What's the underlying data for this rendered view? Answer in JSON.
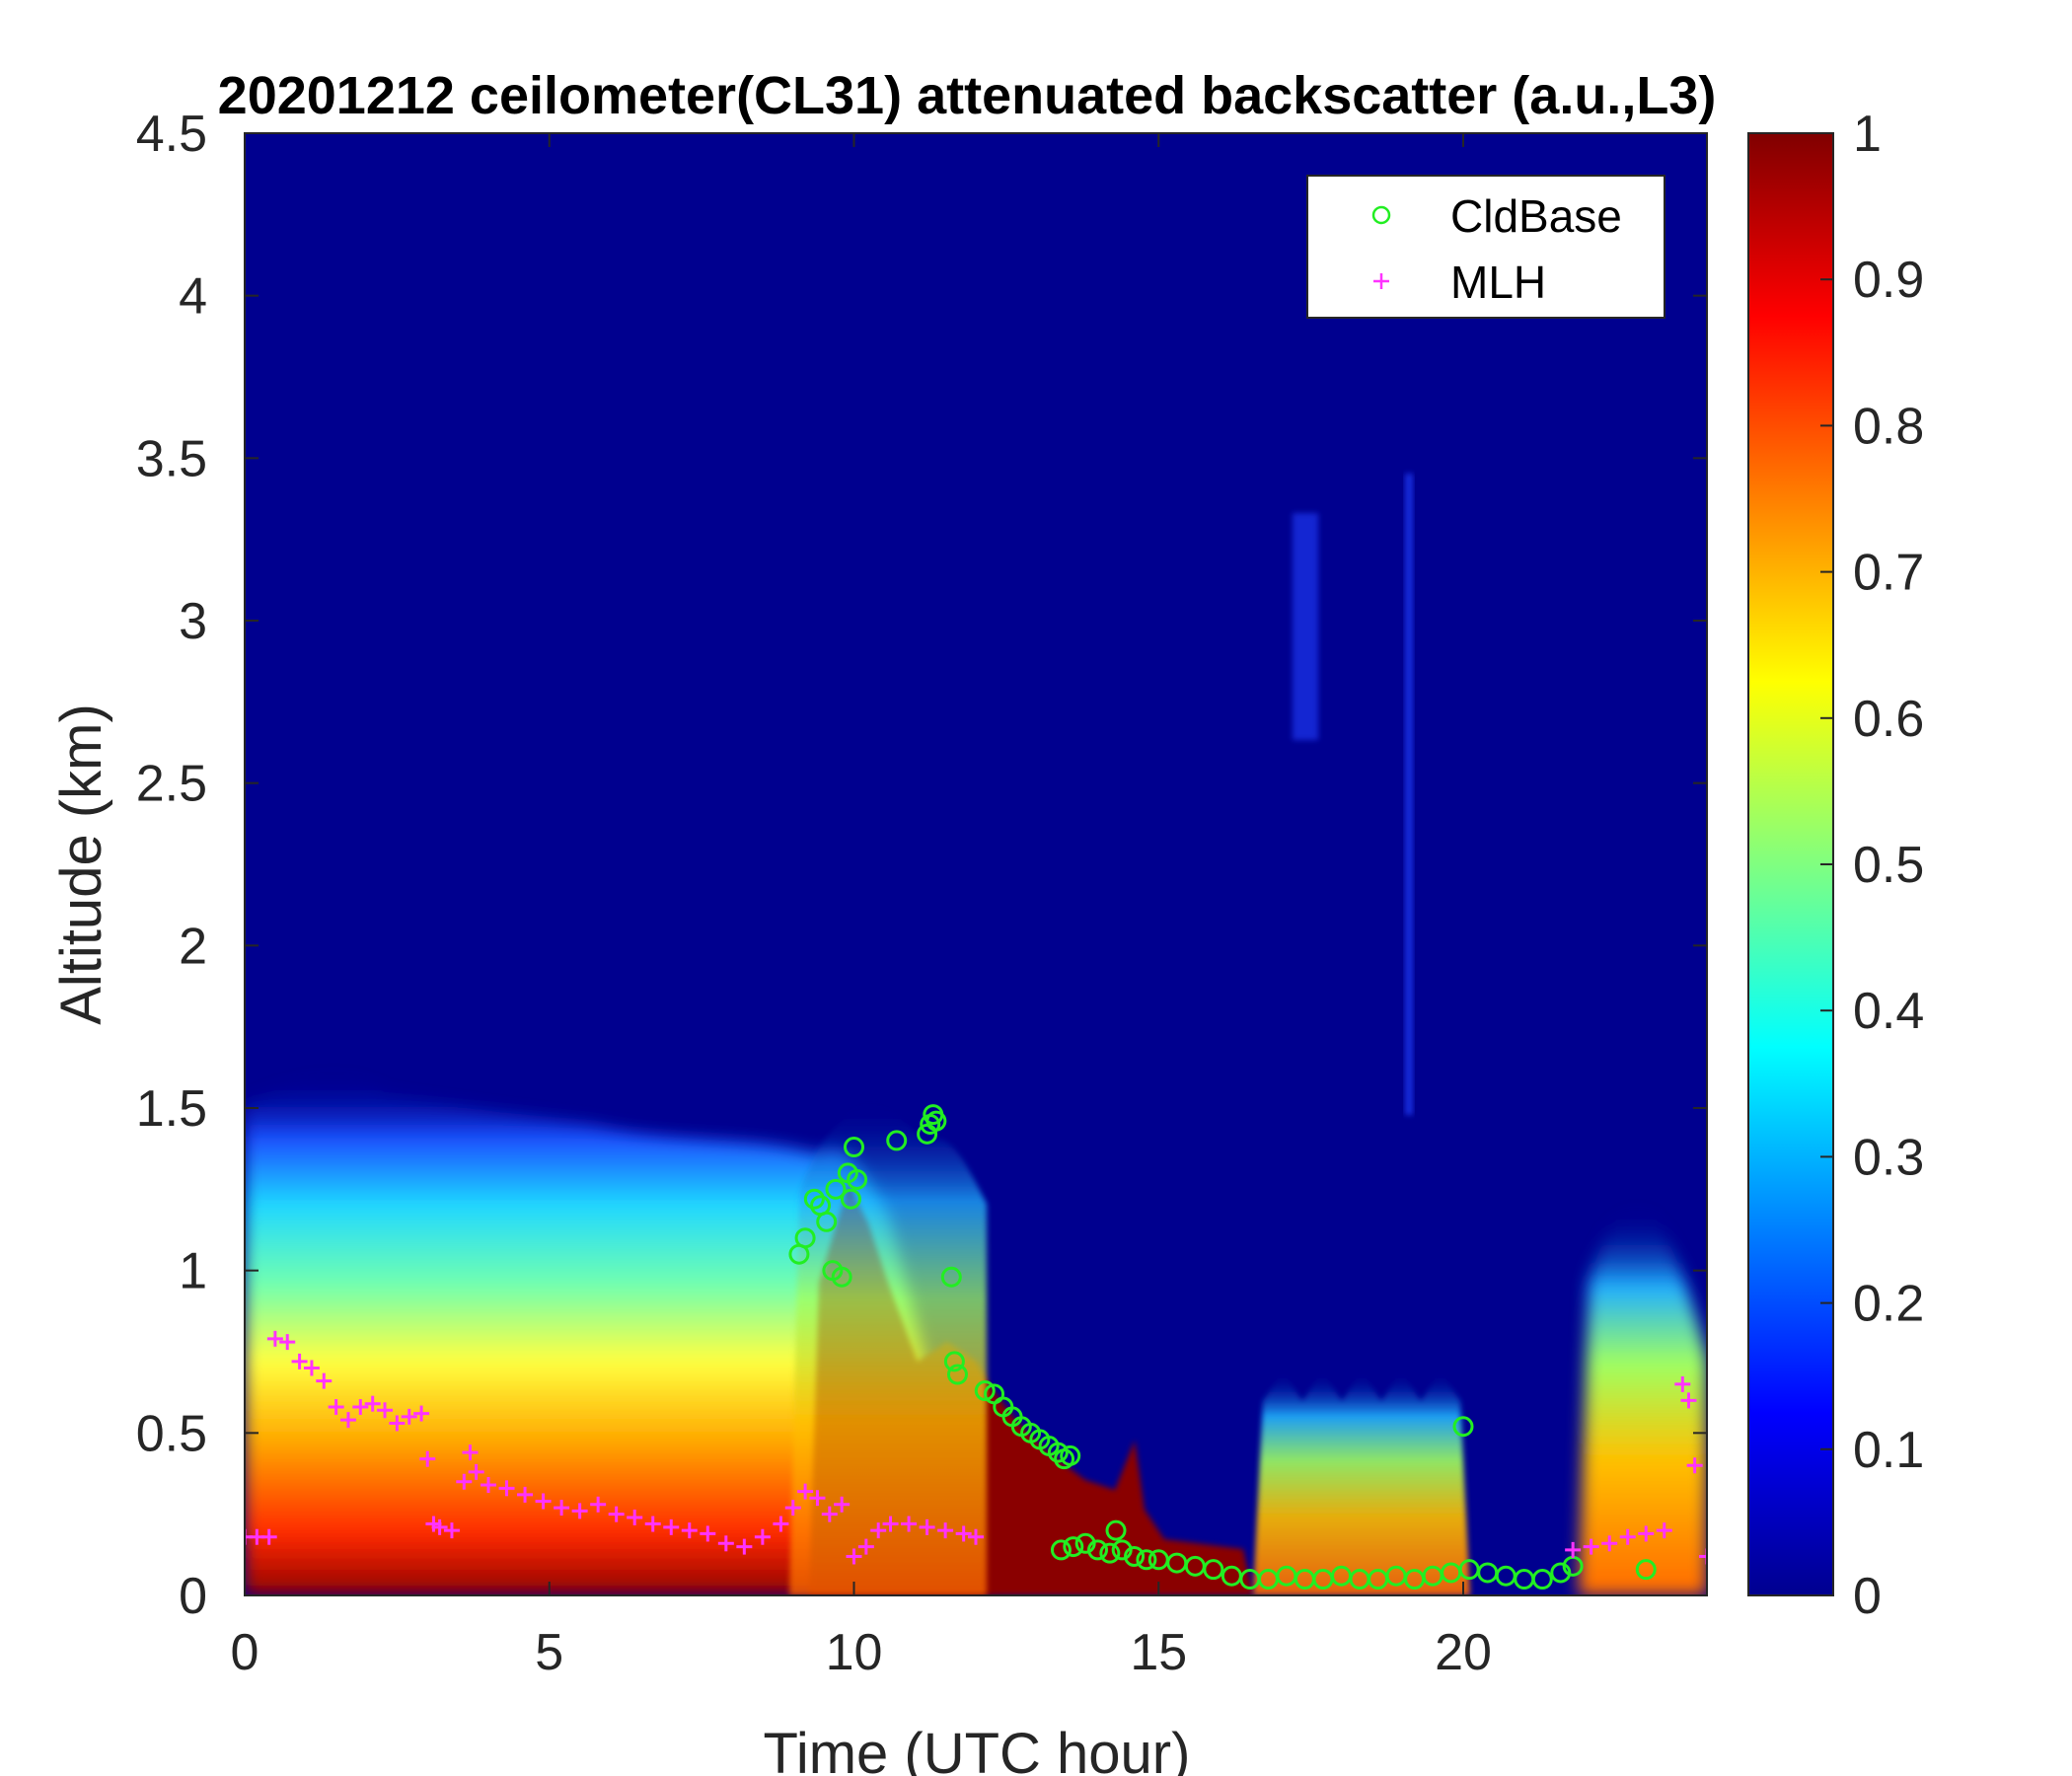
{
  "chart_data": {
    "type": "heatmap",
    "title": "20201212 ceilometer(CL31) attenuated backscatter (a.u.,L3)",
    "xlabel": "Time (UTC hour)",
    "ylabel": "Altitude (km)",
    "xlim": [
      0,
      24
    ],
    "ylim": [
      0,
      4.5
    ],
    "x_ticks": [
      "0",
      "5",
      "10",
      "15",
      "20"
    ],
    "y_ticks": [
      "0",
      "0.5",
      "1",
      "1.5",
      "2",
      "2.5",
      "3",
      "3.5",
      "4",
      "4.5"
    ],
    "colorbar": {
      "colormap": "jet",
      "range": [
        0,
        1
      ],
      "ticks": [
        "0",
        "0.1",
        "0.2",
        "0.3",
        "0.4",
        "0.5",
        "0.6",
        "0.7",
        "0.8",
        "0.9",
        "1"
      ]
    },
    "legend": {
      "placement": "top-right",
      "entries": [
        "CldBase",
        "MLH"
      ]
    },
    "colors": {
      "cldbase": "#22ee22",
      "mlh": "#ff33ff",
      "background": "#00008f"
    },
    "series": [
      {
        "name": "CldBase",
        "marker": "circle",
        "x": [
          9.1,
          9.2,
          9.35,
          9.45,
          9.55,
          9.65,
          9.7,
          9.8,
          9.9,
          9.95,
          10.0,
          10.05,
          10.7,
          11.2,
          11.25,
          11.3,
          11.35,
          11.6,
          11.65,
          11.7,
          12.15,
          12.3,
          12.45,
          12.6,
          12.75,
          12.9,
          13.05,
          13.2,
          13.35,
          13.45,
          13.55,
          13.4,
          13.6,
          13.8,
          14.0,
          14.2,
          14.3,
          14.4,
          14.6,
          14.8,
          15.0,
          15.3,
          15.6,
          15.9,
          16.2,
          16.5,
          16.8,
          17.1,
          17.4,
          17.7,
          18.0,
          18.3,
          18.6,
          18.9,
          19.2,
          19.5,
          19.8,
          20.0,
          20.1,
          20.4,
          20.7,
          21.0,
          21.3,
          21.6,
          21.8,
          23.0
        ],
        "y": [
          1.05,
          1.1,
          1.22,
          1.2,
          1.15,
          1.0,
          1.25,
          0.98,
          1.3,
          1.22,
          1.38,
          1.28,
          1.4,
          1.42,
          1.45,
          1.48,
          1.46,
          0.98,
          0.72,
          0.68,
          0.63,
          0.62,
          0.58,
          0.55,
          0.52,
          0.5,
          0.48,
          0.46,
          0.44,
          0.42,
          0.43,
          0.14,
          0.15,
          0.16,
          0.14,
          0.13,
          0.2,
          0.14,
          0.12,
          0.11,
          0.11,
          0.1,
          0.09,
          0.08,
          0.06,
          0.05,
          0.05,
          0.06,
          0.05,
          0.05,
          0.06,
          0.05,
          0.05,
          0.06,
          0.05,
          0.06,
          0.07,
          0.52,
          0.08,
          0.07,
          0.06,
          0.05,
          0.05,
          0.07,
          0.09,
          0.08
        ]
      },
      {
        "name": "MLH",
        "marker": "plus",
        "x": [
          0.0,
          0.2,
          0.4,
          0.5,
          0.7,
          0.9,
          1.1,
          1.3,
          1.5,
          1.7,
          1.9,
          2.1,
          2.3,
          2.5,
          2.7,
          2.9,
          3.0,
          3.1,
          3.2,
          3.4,
          3.6,
          3.7,
          3.8,
          4.0,
          4.3,
          4.6,
          4.9,
          5.2,
          5.5,
          5.8,
          6.1,
          6.4,
          6.7,
          7.0,
          7.3,
          7.6,
          7.9,
          8.2,
          8.5,
          8.8,
          9.0,
          9.2,
          9.4,
          9.6,
          9.8,
          10.0,
          10.2,
          10.4,
          10.6,
          10.9,
          11.2,
          11.5,
          11.8,
          12.0,
          21.8,
          22.1,
          22.4,
          22.7,
          23.0,
          23.3,
          23.6,
          23.7,
          23.8,
          24.0
        ],
        "y": [
          0.18,
          0.18,
          0.18,
          0.79,
          0.78,
          0.72,
          0.7,
          0.66,
          0.58,
          0.54,
          0.58,
          0.59,
          0.57,
          0.53,
          0.55,
          0.56,
          0.42,
          0.22,
          0.21,
          0.2,
          0.35,
          0.44,
          0.38,
          0.34,
          0.33,
          0.31,
          0.29,
          0.27,
          0.26,
          0.28,
          0.25,
          0.24,
          0.22,
          0.21,
          0.2,
          0.19,
          0.16,
          0.15,
          0.18,
          0.22,
          0.27,
          0.32,
          0.3,
          0.25,
          0.28,
          0.12,
          0.15,
          0.2,
          0.22,
          0.22,
          0.21,
          0.2,
          0.19,
          0.18,
          0.14,
          0.15,
          0.16,
          0.18,
          0.19,
          0.2,
          0.65,
          0.6,
          0.4,
          0.12
        ]
      }
    ]
  }
}
